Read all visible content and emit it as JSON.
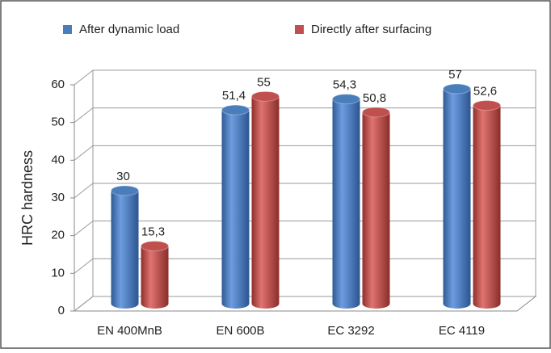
{
  "chart_data": {
    "type": "bar3d",
    "y_label": "HRC hardness",
    "categories": [
      "EN 400MnB",
      "EN 600B",
      "EC 3292",
      "EC 4119"
    ],
    "series": [
      {
        "name": "After dynamic load",
        "color": "#4a7ebb",
        "values": [
          30,
          51.4,
          54.3,
          57
        ],
        "value_labels": [
          "30",
          "51,4",
          "54,3",
          "57"
        ]
      },
      {
        "name": "Directly after surfacing",
        "color": "#c0504d",
        "values": [
          15.3,
          55,
          50.8,
          52.6
        ],
        "value_labels": [
          "15,3",
          "55",
          "50,8",
          "52,6"
        ]
      }
    ],
    "ylim": [
      0,
      60
    ],
    "yticks": [
      0,
      10,
      20,
      30,
      40,
      50,
      60
    ],
    "grid": true,
    "legend": "top"
  }
}
